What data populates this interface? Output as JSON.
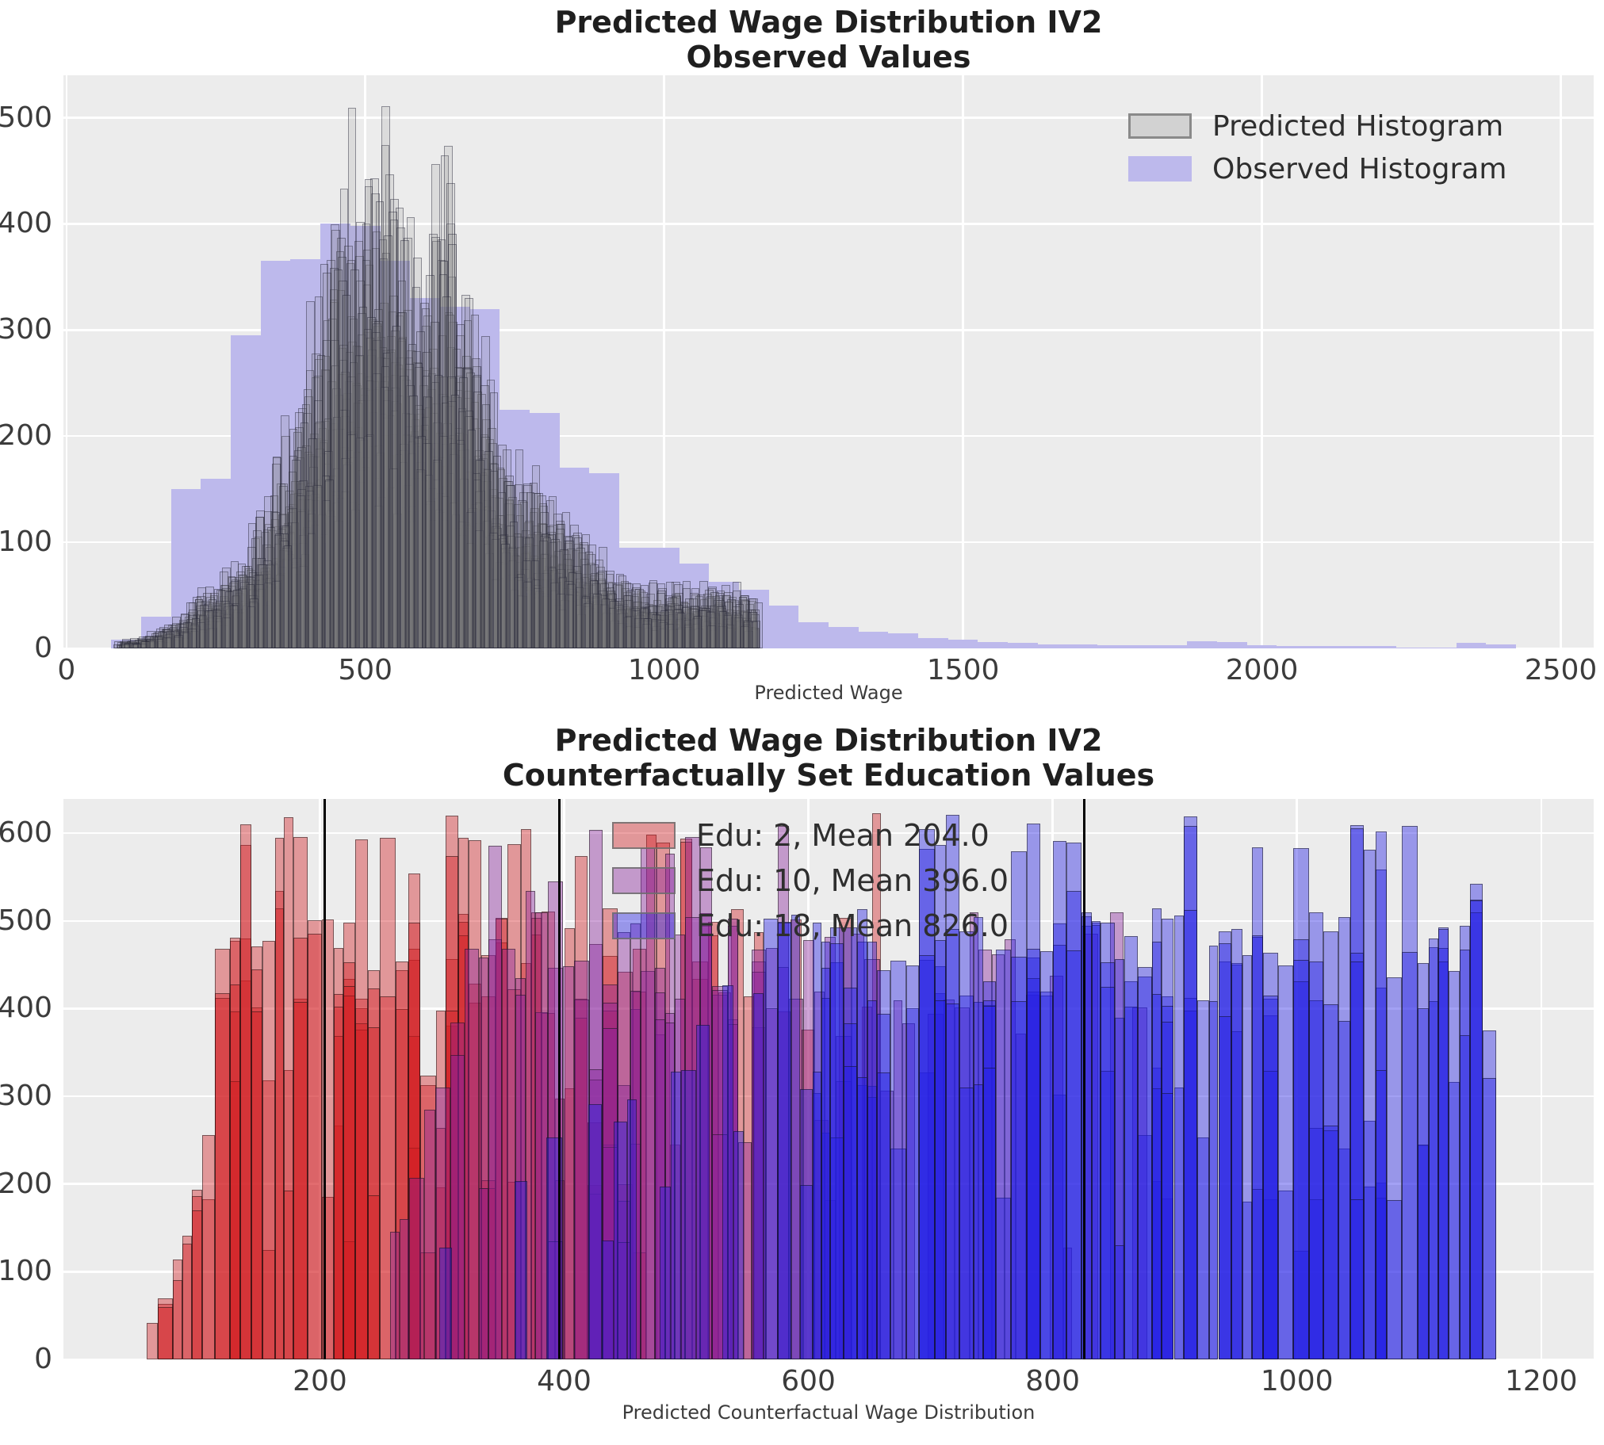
{
  "figure": {
    "background": "#ffffff",
    "axes_background": "#ececec",
    "grid_color": "#ffffff",
    "tick_color": "#3c3c3c",
    "title_color": "#1f1f1f",
    "mean_line_color": "#000000"
  },
  "chart_data": [
    {
      "id": "top",
      "type": "bar",
      "title": "Predicted Wage Distribution IV2",
      "subtitle": "Observed Values",
      "xlabel": "Predicted Wage",
      "ylabel": "",
      "xlim": [
        -5,
        2555
      ],
      "ylim": [
        0,
        540
      ],
      "xticks": [
        0,
        500,
        1000,
        1500,
        2000,
        2500
      ],
      "yticks": [
        0,
        100,
        200,
        300,
        400,
        500
      ],
      "grid": true,
      "legend_position": "upper right",
      "legend": [
        {
          "label": "Predicted Histogram",
          "fill": "#d2d2d2",
          "edge": "#8a8a8a"
        },
        {
          "label": "Observed Histogram",
          "fill": "#bdb9ec",
          "edge": "none"
        }
      ],
      "observed": {
        "bin_start": 75,
        "bin_width": 50,
        "heights": [
          8,
          30,
          150,
          160,
          295,
          365,
          367,
          400,
          398,
          365,
          330,
          322,
          320,
          225,
          222,
          170,
          165,
          95,
          95,
          80,
          63,
          55,
          40,
          25,
          20,
          16,
          14,
          10,
          8,
          6,
          5,
          4,
          4,
          3,
          3,
          3,
          7,
          6,
          3,
          2,
          2,
          2,
          2,
          1,
          1,
          5,
          4
        ]
      },
      "predicted": {
        "bin_start": 90,
        "bin_width": 14,
        "n_draws": 24,
        "fill": "rgba(128,128,128,0.16)",
        "edge": "rgba(28,28,48,0.42)",
        "envelope": [
          8,
          10,
          12,
          15,
          18,
          22,
          28,
          35,
          45,
          55,
          62,
          68,
          75,
          85,
          95,
          110,
          130,
          150,
          170,
          195,
          225,
          260,
          300,
          340,
          380,
          420,
          450,
          470,
          480,
          490,
          515,
          505,
          480,
          460,
          445,
          430,
          420,
          415,
          430,
          505,
          390,
          370,
          340,
          300,
          260,
          225,
          200,
          185,
          178,
          172,
          165,
          155,
          145,
          135,
          125,
          115,
          105,
          95,
          88,
          80,
          72,
          68,
          65,
          63,
          62,
          62,
          62,
          62,
          63,
          62,
          62,
          63,
          62,
          62,
          60,
          58
        ]
      }
    },
    {
      "id": "bottom",
      "type": "bar",
      "title": "Predicted Wage Distribution IV2",
      "subtitle": "Counterfactually Set Education Values",
      "xlabel": "Predicted Counterfactual Wage Distribution",
      "ylabel": "",
      "xlim": [
        -10,
        1243
      ],
      "ylim": [
        0,
        639
      ],
      "xticks": [
        200,
        400,
        600,
        800,
        1000,
        1200
      ],
      "yticks": [
        0,
        100,
        200,
        300,
        400,
        500,
        600
      ],
      "grid": true,
      "legend_position": "upper center-left",
      "levels": [
        627,
        490,
        433,
        400,
        322,
        260,
        195,
        130
      ],
      "level_weights": [
        0.16,
        0.26,
        0.2,
        0.12,
        0.1,
        0.07,
        0.05,
        0.04
      ],
      "groups": [
        {
          "label": "Edu: 2, Mean 204.0",
          "edu": 2,
          "mean": 204.0,
          "fill": "rgba(210,25,30,0.40)",
          "edge": "rgba(15,15,15,0.50)",
          "support": [
            58,
            722
          ],
          "bin_width": 10,
          "density": [
            [
              58,
              0.55
            ],
            [
              90,
              0.95
            ],
            [
              140,
              1.0
            ],
            [
              270,
              1.0
            ],
            [
              350,
              0.8
            ],
            [
              430,
              0.6
            ],
            [
              500,
              0.45
            ],
            [
              565,
              0.32
            ],
            [
              640,
              0.2
            ],
            [
              722,
              0.14
            ]
          ],
          "cap": [
            [
              58,
              55
            ],
            [
              85,
              130
            ],
            [
              100,
              250
            ],
            [
              112,
              430
            ],
            [
              122,
              627
            ],
            [
              722,
              627
            ]
          ]
        },
        {
          "label": "Edu: 10, Mean 396.0",
          "edu": 10,
          "mean": 396.0,
          "fill": "rgba(135,30,155,0.40)",
          "edge": "rgba(15,15,15,0.50)",
          "support": [
            248,
            912
          ],
          "bin_width": 10,
          "density": [
            [
              248,
              0.18
            ],
            [
              310,
              0.35
            ],
            [
              350,
              0.65
            ],
            [
              400,
              0.85
            ],
            [
              480,
              0.9
            ],
            [
              560,
              0.65
            ],
            [
              640,
              0.4
            ],
            [
              720,
              0.28
            ],
            [
              800,
              0.2
            ],
            [
              912,
              0.14
            ]
          ],
          "cap": [
            [
              248,
              140
            ],
            [
              280,
              260
            ],
            [
              310,
              430
            ],
            [
              345,
              627
            ],
            [
              912,
              627
            ]
          ]
        },
        {
          "label": "Edu: 18, Mean 826.0",
          "edu": 18,
          "mean": 826.0,
          "fill": "rgba(35,32,228,0.42)",
          "edge": "rgba(15,15,15,0.50)",
          "support": [
            256,
            1162
          ],
          "bin_width": 10,
          "density": [
            [
              256,
              0.14
            ],
            [
              350,
              0.17
            ],
            [
              450,
              0.22
            ],
            [
              520,
              0.28
            ],
            [
              580,
              0.5
            ],
            [
              620,
              0.85
            ],
            [
              700,
              1.0
            ],
            [
              1140,
              1.0
            ],
            [
              1152,
              0.5
            ],
            [
              1162,
              0.25
            ]
          ],
          "cap": [
            [
              256,
              130
            ],
            [
              320,
              200
            ],
            [
              420,
              300
            ],
            [
              500,
              430
            ],
            [
              560,
              560
            ],
            [
              625,
              627
            ],
            [
              1162,
              627
            ]
          ]
        }
      ]
    }
  ]
}
